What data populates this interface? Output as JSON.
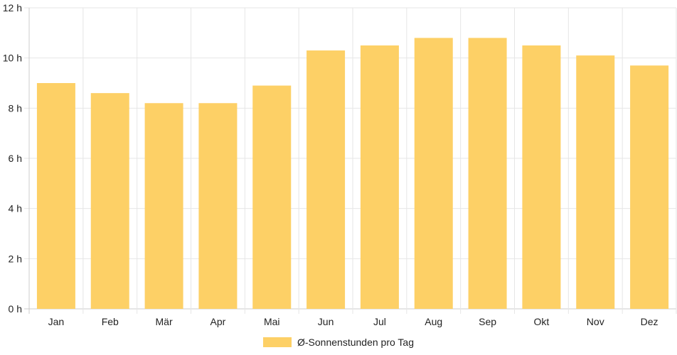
{
  "chart_data": {
    "type": "bar",
    "categories": [
      "Jan",
      "Feb",
      "Mär",
      "Apr",
      "Mai",
      "Jun",
      "Jul",
      "Aug",
      "Sep",
      "Okt",
      "Nov",
      "Dez"
    ],
    "series": [
      {
        "name": "Ø-Sonnenstunden pro Tag",
        "values": [
          9.0,
          8.6,
          8.2,
          8.2,
          8.9,
          10.3,
          10.5,
          10.8,
          10.8,
          10.5,
          10.1,
          9.7
        ],
        "color": "#fdd066"
      }
    ],
    "y_unit": "h",
    "ylim": [
      0,
      12
    ],
    "yticks": [
      0,
      2,
      4,
      6,
      8,
      10,
      12
    ],
    "grid": true,
    "legend_position": "bottom",
    "colors": {
      "grid": "#e6e6e6",
      "axis": "#cccccc",
      "text": "#222222"
    }
  }
}
